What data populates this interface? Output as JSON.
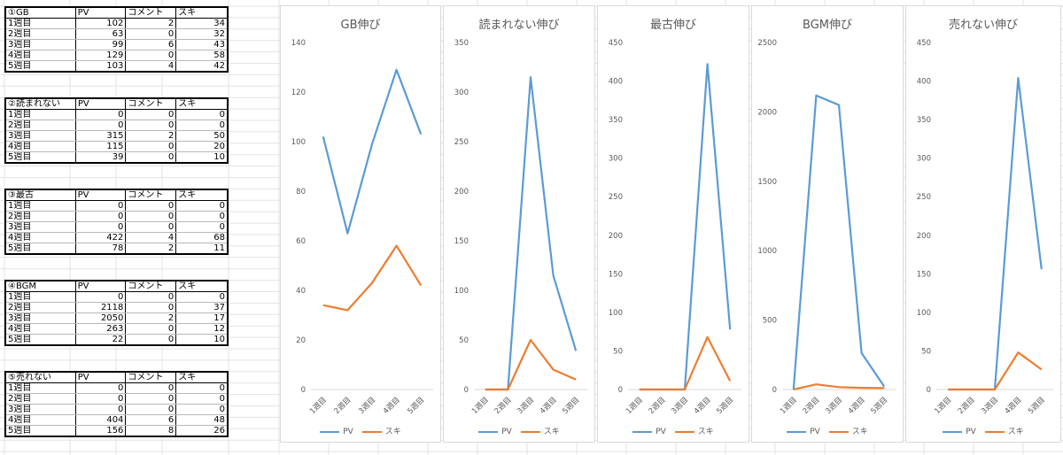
{
  "colors": {
    "pv": "#5b9bd5",
    "suki": "#ed7d31"
  },
  "tables": [
    {
      "header": [
        "①GB",
        "PV",
        "コメント",
        "スキ"
      ],
      "rows": [
        [
          "1週目",
          "102",
          "2",
          "34"
        ],
        [
          "2週目",
          "63",
          "0",
          "32"
        ],
        [
          "3週目",
          "99",
          "6",
          "43"
        ],
        [
          "4週目",
          "129",
          "0",
          "58"
        ],
        [
          "5週目",
          "103",
          "4",
          "42"
        ]
      ]
    },
    {
      "header": [
        "②読まれない",
        "PV",
        "コメント",
        "スキ"
      ],
      "rows": [
        [
          "1週目",
          "0",
          "0",
          "0"
        ],
        [
          "2週目",
          "0",
          "0",
          "0"
        ],
        [
          "3週目",
          "315",
          "2",
          "50"
        ],
        [
          "4週目",
          "115",
          "0",
          "20"
        ],
        [
          "5週目",
          "39",
          "0",
          "10"
        ]
      ]
    },
    {
      "header": [
        "③最古",
        "PV",
        "コメント",
        "スキ"
      ],
      "rows": [
        [
          "1週目",
          "0",
          "0",
          "0"
        ],
        [
          "2週目",
          "0",
          "0",
          "0"
        ],
        [
          "3週目",
          "0",
          "0",
          "0"
        ],
        [
          "4週目",
          "422",
          "4",
          "68"
        ],
        [
          "5週目",
          "78",
          "2",
          "11"
        ]
      ]
    },
    {
      "header": [
        "④BGM",
        "PV",
        "コメント",
        "スキ"
      ],
      "rows": [
        [
          "1週目",
          "0",
          "0",
          "0"
        ],
        [
          "2週目",
          "2118",
          "0",
          "37"
        ],
        [
          "3週目",
          "2050",
          "2",
          "17"
        ],
        [
          "4週目",
          "263",
          "0",
          "12"
        ],
        [
          "5週目",
          "22",
          "0",
          "10"
        ]
      ]
    },
    {
      "header": [
        "⑤売れない",
        "PV",
        "コメント",
        "スキ"
      ],
      "rows": [
        [
          "1週目",
          "0",
          "0",
          "0"
        ],
        [
          "2週目",
          "0",
          "0",
          "0"
        ],
        [
          "3週目",
          "0",
          "0",
          "0"
        ],
        [
          "4週目",
          "404",
          "6",
          "48"
        ],
        [
          "5週目",
          "156",
          "8",
          "26"
        ]
      ]
    }
  ],
  "chart_data": [
    {
      "type": "line",
      "title": "GB伸び",
      "categories": [
        "1週目",
        "2週目",
        "3週目",
        "4週目",
        "5週目"
      ],
      "series": [
        {
          "name": "PV",
          "values": [
            102,
            63,
            99,
            129,
            103
          ]
        },
        {
          "name": "スキ",
          "values": [
            34,
            32,
            43,
            58,
            42
          ]
        }
      ],
      "ylim": [
        0,
        140
      ],
      "yticks": [
        0,
        20,
        40,
        60,
        80,
        100,
        120,
        140
      ],
      "legend": "bottom",
      "grid": false
    },
    {
      "type": "line",
      "title": "読まれない伸び",
      "categories": [
        "1週目",
        "2週目",
        "3週目",
        "4週目",
        "5週目"
      ],
      "series": [
        {
          "name": "PV",
          "values": [
            0,
            0,
            315,
            115,
            39
          ]
        },
        {
          "name": "スキ",
          "values": [
            0,
            0,
            50,
            20,
            10
          ]
        }
      ],
      "ylim": [
        0,
        350
      ],
      "yticks": [
        0,
        50,
        100,
        150,
        200,
        250,
        300,
        350
      ],
      "legend": "bottom",
      "grid": false
    },
    {
      "type": "line",
      "title": "最古伸び",
      "categories": [
        "1週目",
        "2週目",
        "3週目",
        "4週目",
        "5週目"
      ],
      "series": [
        {
          "name": "PV",
          "values": [
            0,
            0,
            0,
            422,
            78
          ]
        },
        {
          "name": "スキ",
          "values": [
            0,
            0,
            0,
            68,
            11
          ]
        }
      ],
      "ylim": [
        0,
        450
      ],
      "yticks": [
        0,
        50,
        100,
        150,
        200,
        250,
        300,
        350,
        400,
        450
      ],
      "legend": "bottom",
      "grid": false
    },
    {
      "type": "line",
      "title": "BGM伸び",
      "categories": [
        "1週目",
        "2週目",
        "3週目",
        "4週目",
        "5週目"
      ],
      "series": [
        {
          "name": "PV",
          "values": [
            0,
            2118,
            2050,
            263,
            22
          ]
        },
        {
          "name": "スキ",
          "values": [
            0,
            37,
            17,
            12,
            10
          ]
        }
      ],
      "ylim": [
        0,
        2500
      ],
      "yticks": [
        0,
        500,
        1000,
        1500,
        2000,
        2500
      ],
      "legend": "bottom",
      "grid": false
    },
    {
      "type": "line",
      "title": "売れない伸び",
      "categories": [
        "1週目",
        "2週目",
        "3週目",
        "4週目",
        "5週目"
      ],
      "series": [
        {
          "name": "PV",
          "values": [
            0,
            0,
            0,
            404,
            156
          ]
        },
        {
          "name": "スキ",
          "values": [
            0,
            0,
            0,
            48,
            26
          ]
        }
      ],
      "ylim": [
        0,
        450
      ],
      "yticks": [
        0,
        50,
        100,
        150,
        200,
        250,
        300,
        350,
        400,
        450
      ],
      "legend": "bottom",
      "grid": false
    }
  ]
}
